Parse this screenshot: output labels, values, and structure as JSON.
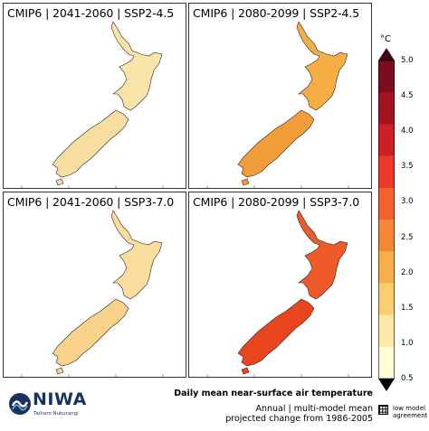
{
  "panels": [
    {
      "title": "CMIP6 | 2041-2060 | SSP2-4.5",
      "fill": "#f9e3a8",
      "south_fill": "#f6dda0"
    },
    {
      "title": "CMIP6 | 2080-2099 | SSP2-4.5",
      "fill": "#f5ad45",
      "south_fill": "#f39d3a"
    },
    {
      "title": "CMIP6 | 2041-2060 | SSP3-7.0",
      "fill": "#f9dd9c",
      "south_fill": "#f8d28a"
    },
    {
      "title": "CMIP6 | 2080-2099 | SSP3-7.0",
      "fill": "#ef5a2a",
      "south_fill": "#e8451f"
    }
  ],
  "colorbar": {
    "unit": "°C",
    "ticks": [
      "5.0",
      "4.5",
      "4.0",
      "3.5",
      "3.0",
      "2.5",
      "2.0",
      "1.5",
      "1.0",
      "0.5"
    ],
    "colors": [
      "#7b0d1e",
      "#a5121f",
      "#cf1f26",
      "#ec3a27",
      "#f0612e",
      "#f58737",
      "#f7ae47",
      "#fbcd6f",
      "#fde9a5",
      "#fffbd4"
    ]
  },
  "caption": {
    "title": "Daily mean near-surface air temperature",
    "line1": "Annual | multi-model mean",
    "line2": "projected change from 1986-2005"
  },
  "legend": {
    "line1": "low model",
    "line2": "agreement"
  },
  "logo": {
    "word": "NIWA",
    "sub": "Taihoro Nukurangi"
  }
}
